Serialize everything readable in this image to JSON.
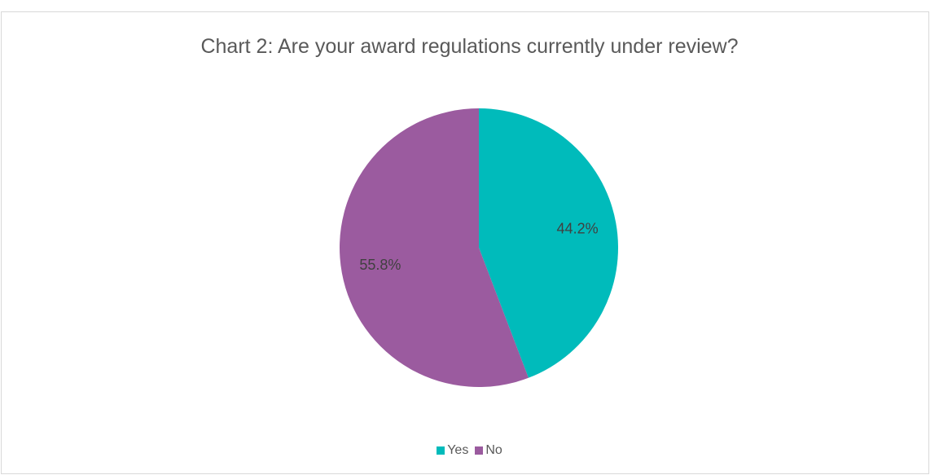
{
  "chart_data": {
    "type": "pie",
    "title": "Chart 2: Are your award regulations currently under review?",
    "categories": [
      "Yes",
      "No"
    ],
    "values": [
      44.2,
      55.8
    ],
    "data_labels": [
      "44.2%",
      "55.8%"
    ],
    "colors": [
      "#00BBBB",
      "#9B5B9F"
    ],
    "legend": {
      "position": "bottom",
      "entries": [
        "Yes",
        "No"
      ]
    }
  }
}
